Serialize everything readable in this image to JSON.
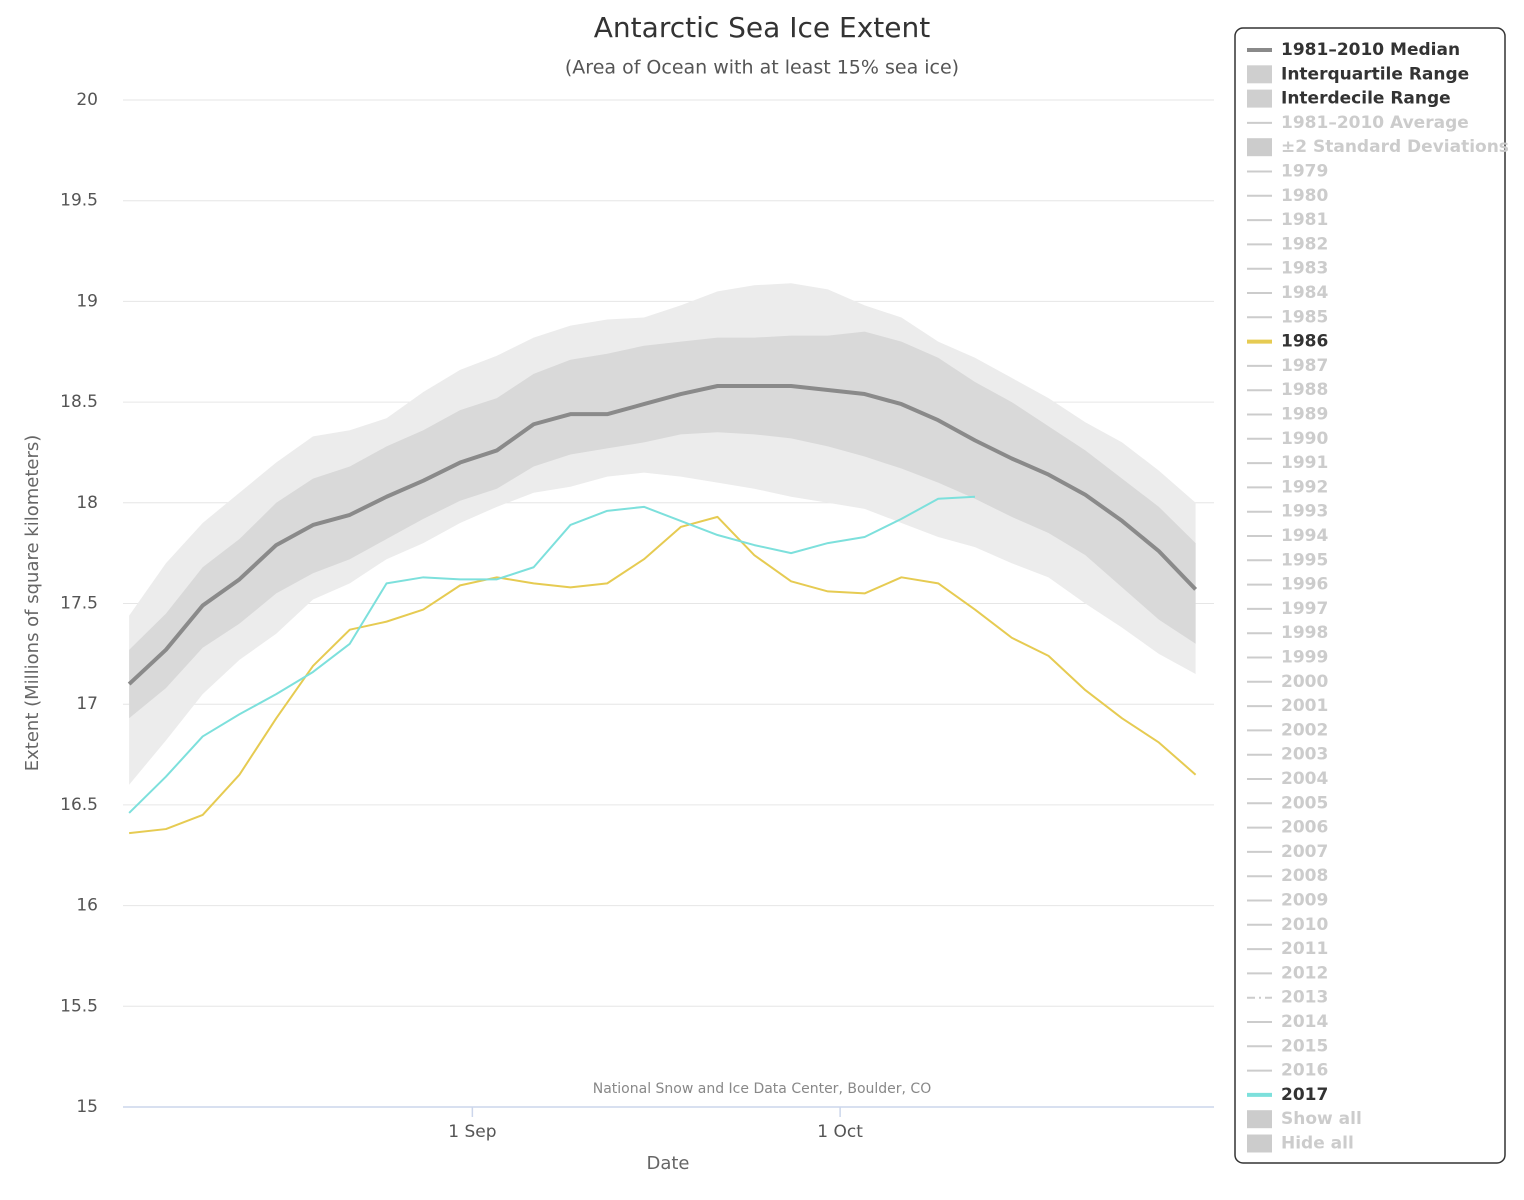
{
  "chart_data": {
    "type": "line",
    "title": "Antarctic Sea Ice Extent",
    "subtitle": "(Area of Ocean with at least 15% sea ice)",
    "y_label": "Extent (Millions of square kilometers)",
    "x_label": "Date",
    "credit": "National Snow and Ice Data Center, Boulder, CO",
    "x": [
      216,
      219,
      222,
      225,
      228,
      231,
      234,
      237,
      240,
      243,
      246,
      249,
      252,
      255,
      258,
      261,
      264,
      267,
      270,
      273,
      276,
      279,
      282,
      285,
      288,
      291,
      294,
      297,
      300,
      303
    ],
    "xlim": [
      215.5,
      304.5
    ],
    "xticks": [
      {
        "value": 244,
        "label": "1 Sep"
      },
      {
        "value": 274,
        "label": "1 Oct"
      }
    ],
    "ylim": [
      15,
      20
    ],
    "yticks": [
      15,
      15.5,
      16,
      16.5,
      17,
      17.5,
      18,
      18.5,
      19,
      19.5,
      20
    ],
    "grid": true,
    "legend_position": "right",
    "series": [
      {
        "name": "1981–2010 Median",
        "kind": "line",
        "visible": true,
        "color": "#8a8a8a",
        "width": 4,
        "values": [
          17.1,
          17.27,
          17.49,
          17.62,
          17.79,
          17.89,
          17.94,
          18.03,
          18.11,
          18.2,
          18.26,
          18.39,
          18.44,
          18.44,
          18.49,
          18.54,
          18.58,
          18.58,
          18.58,
          18.56,
          18.54,
          18.49,
          18.41,
          18.31,
          18.22,
          18.14,
          18.04,
          17.91,
          17.76,
          17.57
        ]
      },
      {
        "name": "Interquartile Range",
        "kind": "band",
        "visible": true,
        "color": "#d9d9d9",
        "high": [
          17.27,
          17.45,
          17.68,
          17.82,
          18.0,
          18.12,
          18.18,
          18.28,
          18.36,
          18.46,
          18.52,
          18.64,
          18.71,
          18.74,
          18.78,
          18.8,
          18.82,
          18.82,
          18.83,
          18.83,
          18.85,
          18.8,
          18.72,
          18.6,
          18.5,
          18.38,
          18.26,
          18.12,
          17.98,
          17.8
        ],
        "low": [
          16.93,
          17.08,
          17.28,
          17.4,
          17.55,
          17.65,
          17.72,
          17.82,
          17.92,
          18.01,
          18.07,
          18.18,
          18.24,
          18.27,
          18.3,
          18.34,
          18.35,
          18.34,
          18.32,
          18.28,
          18.23,
          18.17,
          18.1,
          18.02,
          17.93,
          17.85,
          17.74,
          17.58,
          17.42,
          17.3
        ]
      },
      {
        "name": "Interdecile Range",
        "kind": "band",
        "visible": true,
        "color": "#ececec",
        "high": [
          17.44,
          17.7,
          17.9,
          18.05,
          18.2,
          18.33,
          18.36,
          18.42,
          18.55,
          18.66,
          18.73,
          18.82,
          18.88,
          18.91,
          18.92,
          18.98,
          19.05,
          19.08,
          19.09,
          19.06,
          18.98,
          18.92,
          18.8,
          18.72,
          18.62,
          18.52,
          18.4,
          18.3,
          18.16,
          18.0
        ],
        "low": [
          16.6,
          16.82,
          17.05,
          17.22,
          17.35,
          17.52,
          17.6,
          17.72,
          17.8,
          17.9,
          17.98,
          18.05,
          18.08,
          18.13,
          18.15,
          18.13,
          18.1,
          18.07,
          18.03,
          18.0,
          17.97,
          17.9,
          17.83,
          17.78,
          17.7,
          17.63,
          17.5,
          17.38,
          17.25,
          17.15
        ]
      },
      {
        "name": "1981–2010 Average",
        "kind": "line",
        "visible": false
      },
      {
        "name": "±2 Standard Deviations",
        "kind": "band",
        "visible": false
      },
      {
        "name": "1979",
        "kind": "line",
        "visible": false
      },
      {
        "name": "1980",
        "kind": "line",
        "visible": false
      },
      {
        "name": "1981",
        "kind": "line",
        "visible": false
      },
      {
        "name": "1982",
        "kind": "line",
        "visible": false
      },
      {
        "name": "1983",
        "kind": "line",
        "visible": false
      },
      {
        "name": "1984",
        "kind": "line",
        "visible": false
      },
      {
        "name": "1985",
        "kind": "line",
        "visible": false
      },
      {
        "name": "1986",
        "kind": "line",
        "visible": true,
        "color": "#e6cb52",
        "width": 2,
        "values": [
          16.36,
          16.38,
          16.45,
          16.65,
          16.93,
          17.19,
          17.37,
          17.41,
          17.47,
          17.59,
          17.63,
          17.6,
          17.58,
          17.6,
          17.72,
          17.88,
          17.93,
          17.74,
          17.61,
          17.56,
          17.55,
          17.63,
          17.6,
          17.47,
          17.33,
          17.24,
          17.07,
          16.93,
          16.81,
          16.65
        ]
      },
      {
        "name": "1987",
        "kind": "line",
        "visible": false
      },
      {
        "name": "1988",
        "kind": "line",
        "visible": false
      },
      {
        "name": "1989",
        "kind": "line",
        "visible": false
      },
      {
        "name": "1990",
        "kind": "line",
        "visible": false
      },
      {
        "name": "1991",
        "kind": "line",
        "visible": false
      },
      {
        "name": "1992",
        "kind": "line",
        "visible": false
      },
      {
        "name": "1993",
        "kind": "line",
        "visible": false
      },
      {
        "name": "1994",
        "kind": "line",
        "visible": false
      },
      {
        "name": "1995",
        "kind": "line",
        "visible": false
      },
      {
        "name": "1996",
        "kind": "line",
        "visible": false
      },
      {
        "name": "1997",
        "kind": "line",
        "visible": false
      },
      {
        "name": "1998",
        "kind": "line",
        "visible": false
      },
      {
        "name": "1999",
        "kind": "line",
        "visible": false
      },
      {
        "name": "2000",
        "kind": "line",
        "visible": false
      },
      {
        "name": "2001",
        "kind": "line",
        "visible": false
      },
      {
        "name": "2002",
        "kind": "line",
        "visible": false
      },
      {
        "name": "2003",
        "kind": "line",
        "visible": false
      },
      {
        "name": "2004",
        "kind": "line",
        "visible": false
      },
      {
        "name": "2005",
        "kind": "line",
        "visible": false
      },
      {
        "name": "2006",
        "kind": "line",
        "visible": false
      },
      {
        "name": "2007",
        "kind": "line",
        "visible": false
      },
      {
        "name": "2008",
        "kind": "line",
        "visible": false
      },
      {
        "name": "2009",
        "kind": "line",
        "visible": false
      },
      {
        "name": "2010",
        "kind": "line",
        "visible": false
      },
      {
        "name": "2011",
        "kind": "line",
        "visible": false
      },
      {
        "name": "2012",
        "kind": "line",
        "visible": false
      },
      {
        "name": "2013",
        "kind": "line",
        "visible": false,
        "dash": "dashdot"
      },
      {
        "name": "2014",
        "kind": "line",
        "visible": false
      },
      {
        "name": "2015",
        "kind": "line",
        "visible": false
      },
      {
        "name": "2016",
        "kind": "line",
        "visible": false
      },
      {
        "name": "2017",
        "kind": "line",
        "visible": true,
        "color": "#7de0dc",
        "width": 2,
        "values": [
          16.46,
          16.64,
          16.84,
          16.95,
          17.05,
          17.16,
          17.3,
          17.6,
          17.63,
          17.62,
          17.62,
          17.68,
          17.89,
          17.96,
          17.98,
          17.91,
          17.84,
          17.79,
          17.75,
          17.8,
          17.83,
          17.92,
          18.02,
          18.03,
          null,
          null,
          null,
          null,
          null,
          null
        ]
      }
    ],
    "legend_buttons": [
      "Show all",
      "Hide all"
    ]
  }
}
